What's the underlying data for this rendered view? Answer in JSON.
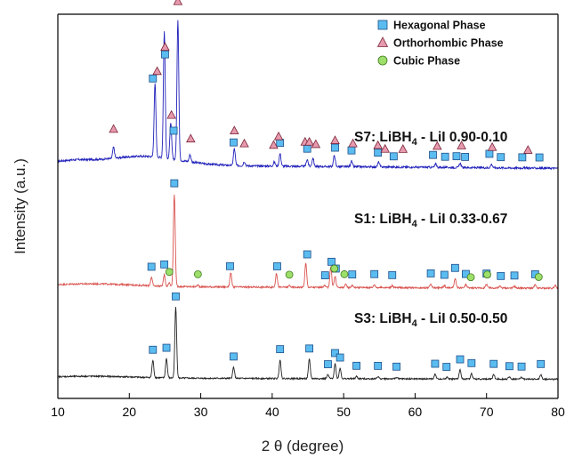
{
  "chart_data": {
    "type": "line",
    "title": "",
    "xlabel": "2 θ (degree)",
    "ylabel": "Intensity (a.u.)",
    "xlim": [
      10,
      80
    ],
    "xticks": [
      10,
      20,
      30,
      40,
      50,
      60,
      70,
      80
    ],
    "yticks_shown": false,
    "legend_position": "top-right",
    "legend": [
      {
        "name": "Hexagonal Phase",
        "marker": "square",
        "color": "#5bbcf0"
      },
      {
        "name": "Orthorhombic Phase",
        "marker": "triangle",
        "color": "#e79aae"
      },
      {
        "name": "Cubic Phase",
        "marker": "circle",
        "color": "#9ddf6a"
      }
    ],
    "series": [
      {
        "name": "S7: LiBH4 - LiI 0.90-0.10",
        "label_main": "S7: LiBH",
        "label_sub": "4",
        "label_rest": " - LiI 0.90-0.10",
        "color": "#2222bb",
        "baseline": 0.0,
        "peaks": [
          [
            17.8,
            0.08
          ],
          [
            23.6,
            0.52
          ],
          [
            24.9,
            0.9
          ],
          [
            25.8,
            0.25
          ],
          [
            26.8,
            1.0
          ],
          [
            28.5,
            0.05
          ],
          [
            34.7,
            0.12
          ],
          [
            36.1,
            0.03
          ],
          [
            40.3,
            0.03
          ],
          [
            41.1,
            0.09
          ],
          [
            44.9,
            0.05
          ],
          [
            45.7,
            0.06
          ],
          [
            48.7,
            0.08
          ],
          [
            51.1,
            0.04
          ],
          [
            54.9,
            0.035
          ],
          [
            62.9,
            0.025
          ],
          [
            66.3,
            0.03
          ],
          [
            70.7,
            0.025
          ]
        ],
        "markers": [
          {
            "x": 25.0,
            "type": "square"
          },
          {
            "x": 26.2,
            "type": "square"
          },
          {
            "x": 23.3,
            "type": "square"
          },
          {
            "x": 34.6,
            "type": "square"
          },
          {
            "x": 41.1,
            "type": "square"
          },
          {
            "x": 44.9,
            "type": "square"
          },
          {
            "x": 48.8,
            "type": "square"
          },
          {
            "x": 51.1,
            "type": "square"
          },
          {
            "x": 54.8,
            "type": "square"
          },
          {
            "x": 57.0,
            "type": "square"
          },
          {
            "x": 62.5,
            "type": "square"
          },
          {
            "x": 64.2,
            "type": "square"
          },
          {
            "x": 65.8,
            "type": "square"
          },
          {
            "x": 67.0,
            "type": "square"
          },
          {
            "x": 70.4,
            "type": "square"
          },
          {
            "x": 72.0,
            "type": "square"
          },
          {
            "x": 75.0,
            "type": "square"
          },
          {
            "x": 77.4,
            "type": "square"
          },
          {
            "x": 17.8,
            "type": "triangle"
          },
          {
            "x": 23.9,
            "type": "triangle"
          },
          {
            "x": 25.0,
            "type": "triangle"
          },
          {
            "x": 25.9,
            "type": "triangle"
          },
          {
            "x": 26.8,
            "type": "triangle"
          },
          {
            "x": 28.6,
            "type": "triangle"
          },
          {
            "x": 34.7,
            "type": "triangle"
          },
          {
            "x": 36.1,
            "type": "triangle"
          },
          {
            "x": 40.2,
            "type": "triangle"
          },
          {
            "x": 40.9,
            "type": "triangle"
          },
          {
            "x": 44.6,
            "type": "triangle"
          },
          {
            "x": 45.2,
            "type": "triangle"
          },
          {
            "x": 46.1,
            "type": "triangle"
          },
          {
            "x": 48.8,
            "type": "triangle"
          },
          {
            "x": 51.3,
            "type": "triangle"
          },
          {
            "x": 54.8,
            "type": "triangle"
          },
          {
            "x": 55.8,
            "type": "triangle"
          },
          {
            "x": 58.3,
            "type": "triangle"
          },
          {
            "x": 63.1,
            "type": "triangle"
          },
          {
            "x": 66.5,
            "type": "triangle"
          },
          {
            "x": 70.8,
            "type": "triangle"
          },
          {
            "x": 75.8,
            "type": "triangle"
          }
        ]
      },
      {
        "name": "S1: LiBH4 - LiI 0.33-0.67",
        "label_main": "S1: LiBH",
        "label_sub": "4",
        "label_rest": " - LiI 0.33-0.67",
        "color": "#d9534f",
        "baseline": 0.0,
        "peaks": [
          [
            23.1,
            0.09
          ],
          [
            24.9,
            0.12
          ],
          [
            25.6,
            0.04
          ],
          [
            26.3,
            1.0
          ],
          [
            29.6,
            0.02
          ],
          [
            34.2,
            0.15
          ],
          [
            40.6,
            0.15
          ],
          [
            42.4,
            0.02
          ],
          [
            44.7,
            0.26
          ],
          [
            47.3,
            0.02
          ],
          [
            48.2,
            0.22
          ],
          [
            48.8,
            0.12
          ],
          [
            50.3,
            0.03
          ],
          [
            51.2,
            0.025
          ],
          [
            54.3,
            0.03
          ],
          [
            56.8,
            0.02
          ],
          [
            62.2,
            0.04
          ],
          [
            64.1,
            0.025
          ],
          [
            65.6,
            0.1
          ],
          [
            67.1,
            0.035
          ],
          [
            70.0,
            0.04
          ],
          [
            71.9,
            0.02
          ],
          [
            73.9,
            0.02
          ],
          [
            76.8,
            0.035
          ],
          [
            79.6,
            0.03
          ]
        ],
        "markers": [
          {
            "x": 26.3,
            "type": "square"
          },
          {
            "x": 24.9,
            "type": "square"
          },
          {
            "x": 23.1,
            "type": "square"
          },
          {
            "x": 34.1,
            "type": "square"
          },
          {
            "x": 40.7,
            "type": "square"
          },
          {
            "x": 44.9,
            "type": "square"
          },
          {
            "x": 48.3,
            "type": "square"
          },
          {
            "x": 48.9,
            "type": "square"
          },
          {
            "x": 47.4,
            "type": "square"
          },
          {
            "x": 51.2,
            "type": "square"
          },
          {
            "x": 54.3,
            "type": "square"
          },
          {
            "x": 56.8,
            "type": "square"
          },
          {
            "x": 62.2,
            "type": "square"
          },
          {
            "x": 64.1,
            "type": "square"
          },
          {
            "x": 65.6,
            "type": "square"
          },
          {
            "x": 67.1,
            "type": "square"
          },
          {
            "x": 70.0,
            "type": "square"
          },
          {
            "x": 72.0,
            "type": "square"
          },
          {
            "x": 73.9,
            "type": "square"
          },
          {
            "x": 76.8,
            "type": "square"
          },
          {
            "x": 25.6,
            "type": "circle"
          },
          {
            "x": 29.6,
            "type": "circle"
          },
          {
            "x": 42.4,
            "type": "circle"
          },
          {
            "x": 48.7,
            "type": "circle"
          },
          {
            "x": 50.1,
            "type": "circle"
          },
          {
            "x": 67.8,
            "type": "circle"
          },
          {
            "x": 70.1,
            "type": "circle"
          },
          {
            "x": 77.3,
            "type": "circle"
          }
        ]
      },
      {
        "name": "S3: LiBH4 - LiI 0.50-0.50",
        "label_main": "S3: LiBH",
        "label_sub": "4",
        "label_rest": " - LiI 0.50-0.50",
        "color": "#222222",
        "baseline": 0.0,
        "peaks": [
          [
            23.3,
            0.23
          ],
          [
            25.2,
            0.26
          ],
          [
            26.5,
            0.95
          ],
          [
            34.6,
            0.15
          ],
          [
            41.1,
            0.25
          ],
          [
            45.2,
            0.26
          ],
          [
            47.8,
            0.05
          ],
          [
            48.8,
            0.2
          ],
          [
            49.5,
            0.14
          ],
          [
            51.8,
            0.03
          ],
          [
            54.8,
            0.03
          ],
          [
            57.4,
            0.02
          ],
          [
            62.8,
            0.06
          ],
          [
            64.5,
            0.025
          ],
          [
            66.3,
            0.12
          ],
          [
            67.9,
            0.07
          ],
          [
            71.0,
            0.06
          ],
          [
            73.2,
            0.03
          ],
          [
            74.9,
            0.025
          ],
          [
            77.6,
            0.06
          ]
        ],
        "markers": [
          {
            "x": 26.5,
            "type": "square"
          },
          {
            "x": 25.2,
            "type": "square"
          },
          {
            "x": 23.3,
            "type": "square"
          },
          {
            "x": 34.6,
            "type": "square"
          },
          {
            "x": 41.1,
            "type": "square"
          },
          {
            "x": 45.2,
            "type": "square"
          },
          {
            "x": 47.8,
            "type": "square"
          },
          {
            "x": 48.8,
            "type": "square"
          },
          {
            "x": 49.5,
            "type": "square"
          },
          {
            "x": 51.8,
            "type": "square"
          },
          {
            "x": 54.8,
            "type": "square"
          },
          {
            "x": 57.4,
            "type": "square"
          },
          {
            "x": 62.8,
            "type": "square"
          },
          {
            "x": 64.4,
            "type": "square"
          },
          {
            "x": 66.3,
            "type": "square"
          },
          {
            "x": 67.9,
            "type": "square"
          },
          {
            "x": 71.0,
            "type": "square"
          },
          {
            "x": 73.2,
            "type": "square"
          },
          {
            "x": 74.9,
            "type": "square"
          },
          {
            "x": 77.6,
            "type": "square"
          }
        ]
      }
    ]
  }
}
